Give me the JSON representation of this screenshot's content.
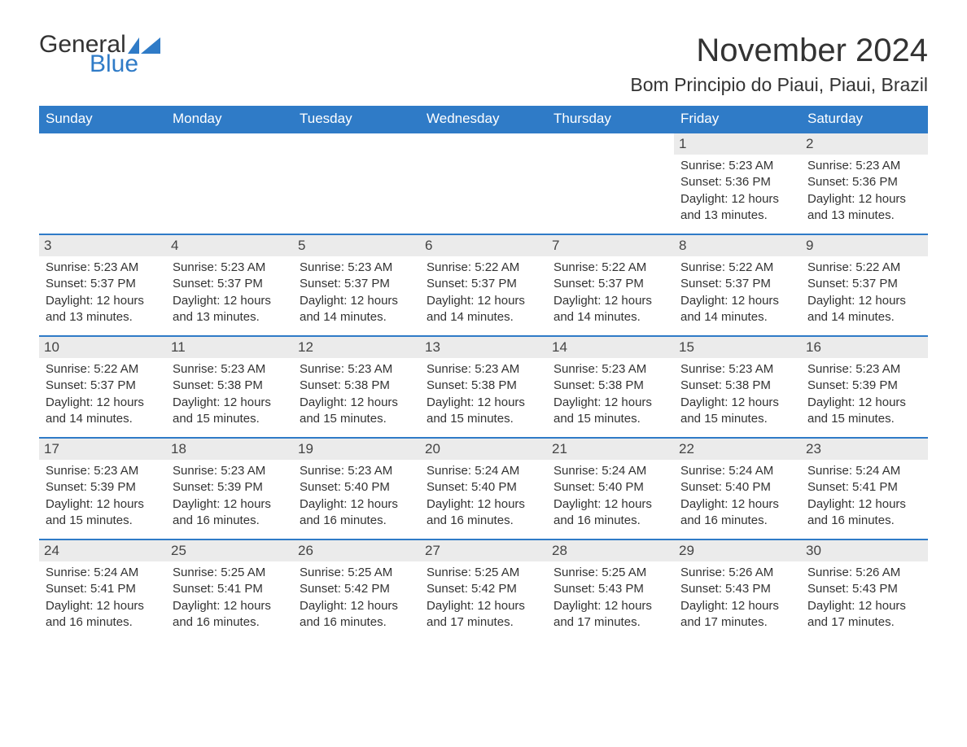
{
  "logo": {
    "text1": "General",
    "text2": "Blue",
    "brand_color": "#2f7bc7"
  },
  "title": "November 2024",
  "location": "Bom Principio do Piaui, Piaui, Brazil",
  "colors": {
    "header_bg": "#2f7bc7",
    "header_text": "#ffffff",
    "daynum_bg": "#ebebeb",
    "body_text": "#333333",
    "rule": "#2f7bc7"
  },
  "weekdays": [
    "Sunday",
    "Monday",
    "Tuesday",
    "Wednesday",
    "Thursday",
    "Friday",
    "Saturday"
  ],
  "weeks": [
    [
      {
        "empty": true
      },
      {
        "empty": true
      },
      {
        "empty": true
      },
      {
        "empty": true
      },
      {
        "empty": true
      },
      {
        "day": "1",
        "sunrise": "Sunrise: 5:23 AM",
        "sunset": "Sunset: 5:36 PM",
        "daylight": "Daylight: 12 hours and 13 minutes."
      },
      {
        "day": "2",
        "sunrise": "Sunrise: 5:23 AM",
        "sunset": "Sunset: 5:36 PM",
        "daylight": "Daylight: 12 hours and 13 minutes."
      }
    ],
    [
      {
        "day": "3",
        "sunrise": "Sunrise: 5:23 AM",
        "sunset": "Sunset: 5:37 PM",
        "daylight": "Daylight: 12 hours and 13 minutes."
      },
      {
        "day": "4",
        "sunrise": "Sunrise: 5:23 AM",
        "sunset": "Sunset: 5:37 PM",
        "daylight": "Daylight: 12 hours and 13 minutes."
      },
      {
        "day": "5",
        "sunrise": "Sunrise: 5:23 AM",
        "sunset": "Sunset: 5:37 PM",
        "daylight": "Daylight: 12 hours and 14 minutes."
      },
      {
        "day": "6",
        "sunrise": "Sunrise: 5:22 AM",
        "sunset": "Sunset: 5:37 PM",
        "daylight": "Daylight: 12 hours and 14 minutes."
      },
      {
        "day": "7",
        "sunrise": "Sunrise: 5:22 AM",
        "sunset": "Sunset: 5:37 PM",
        "daylight": "Daylight: 12 hours and 14 minutes."
      },
      {
        "day": "8",
        "sunrise": "Sunrise: 5:22 AM",
        "sunset": "Sunset: 5:37 PM",
        "daylight": "Daylight: 12 hours and 14 minutes."
      },
      {
        "day": "9",
        "sunrise": "Sunrise: 5:22 AM",
        "sunset": "Sunset: 5:37 PM",
        "daylight": "Daylight: 12 hours and 14 minutes."
      }
    ],
    [
      {
        "day": "10",
        "sunrise": "Sunrise: 5:22 AM",
        "sunset": "Sunset: 5:37 PM",
        "daylight": "Daylight: 12 hours and 14 minutes."
      },
      {
        "day": "11",
        "sunrise": "Sunrise: 5:23 AM",
        "sunset": "Sunset: 5:38 PM",
        "daylight": "Daylight: 12 hours and 15 minutes."
      },
      {
        "day": "12",
        "sunrise": "Sunrise: 5:23 AM",
        "sunset": "Sunset: 5:38 PM",
        "daylight": "Daylight: 12 hours and 15 minutes."
      },
      {
        "day": "13",
        "sunrise": "Sunrise: 5:23 AM",
        "sunset": "Sunset: 5:38 PM",
        "daylight": "Daylight: 12 hours and 15 minutes."
      },
      {
        "day": "14",
        "sunrise": "Sunrise: 5:23 AM",
        "sunset": "Sunset: 5:38 PM",
        "daylight": "Daylight: 12 hours and 15 minutes."
      },
      {
        "day": "15",
        "sunrise": "Sunrise: 5:23 AM",
        "sunset": "Sunset: 5:38 PM",
        "daylight": "Daylight: 12 hours and 15 minutes."
      },
      {
        "day": "16",
        "sunrise": "Sunrise: 5:23 AM",
        "sunset": "Sunset: 5:39 PM",
        "daylight": "Daylight: 12 hours and 15 minutes."
      }
    ],
    [
      {
        "day": "17",
        "sunrise": "Sunrise: 5:23 AM",
        "sunset": "Sunset: 5:39 PM",
        "daylight": "Daylight: 12 hours and 15 minutes."
      },
      {
        "day": "18",
        "sunrise": "Sunrise: 5:23 AM",
        "sunset": "Sunset: 5:39 PM",
        "daylight": "Daylight: 12 hours and 16 minutes."
      },
      {
        "day": "19",
        "sunrise": "Sunrise: 5:23 AM",
        "sunset": "Sunset: 5:40 PM",
        "daylight": "Daylight: 12 hours and 16 minutes."
      },
      {
        "day": "20",
        "sunrise": "Sunrise: 5:24 AM",
        "sunset": "Sunset: 5:40 PM",
        "daylight": "Daylight: 12 hours and 16 minutes."
      },
      {
        "day": "21",
        "sunrise": "Sunrise: 5:24 AM",
        "sunset": "Sunset: 5:40 PM",
        "daylight": "Daylight: 12 hours and 16 minutes."
      },
      {
        "day": "22",
        "sunrise": "Sunrise: 5:24 AM",
        "sunset": "Sunset: 5:40 PM",
        "daylight": "Daylight: 12 hours and 16 minutes."
      },
      {
        "day": "23",
        "sunrise": "Sunrise: 5:24 AM",
        "sunset": "Sunset: 5:41 PM",
        "daylight": "Daylight: 12 hours and 16 minutes."
      }
    ],
    [
      {
        "day": "24",
        "sunrise": "Sunrise: 5:24 AM",
        "sunset": "Sunset: 5:41 PM",
        "daylight": "Daylight: 12 hours and 16 minutes."
      },
      {
        "day": "25",
        "sunrise": "Sunrise: 5:25 AM",
        "sunset": "Sunset: 5:41 PM",
        "daylight": "Daylight: 12 hours and 16 minutes."
      },
      {
        "day": "26",
        "sunrise": "Sunrise: 5:25 AM",
        "sunset": "Sunset: 5:42 PM",
        "daylight": "Daylight: 12 hours and 16 minutes."
      },
      {
        "day": "27",
        "sunrise": "Sunrise: 5:25 AM",
        "sunset": "Sunset: 5:42 PM",
        "daylight": "Daylight: 12 hours and 17 minutes."
      },
      {
        "day": "28",
        "sunrise": "Sunrise: 5:25 AM",
        "sunset": "Sunset: 5:43 PM",
        "daylight": "Daylight: 12 hours and 17 minutes."
      },
      {
        "day": "29",
        "sunrise": "Sunrise: 5:26 AM",
        "sunset": "Sunset: 5:43 PM",
        "daylight": "Daylight: 12 hours and 17 minutes."
      },
      {
        "day": "30",
        "sunrise": "Sunrise: 5:26 AM",
        "sunset": "Sunset: 5:43 PM",
        "daylight": "Daylight: 12 hours and 17 minutes."
      }
    ]
  ]
}
